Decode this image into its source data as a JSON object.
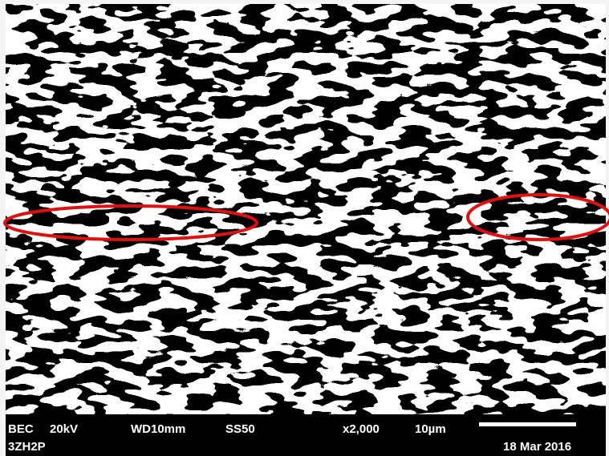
{
  "info_bar": {
    "detector": "BEC",
    "voltage": "20kV",
    "working_distance": "WD10mm",
    "spot_size": "SS50",
    "magnification": "x2,000",
    "scale": "10µm",
    "sample_id": "3ZH2P",
    "date": "18 Mar 2016"
  }
}
